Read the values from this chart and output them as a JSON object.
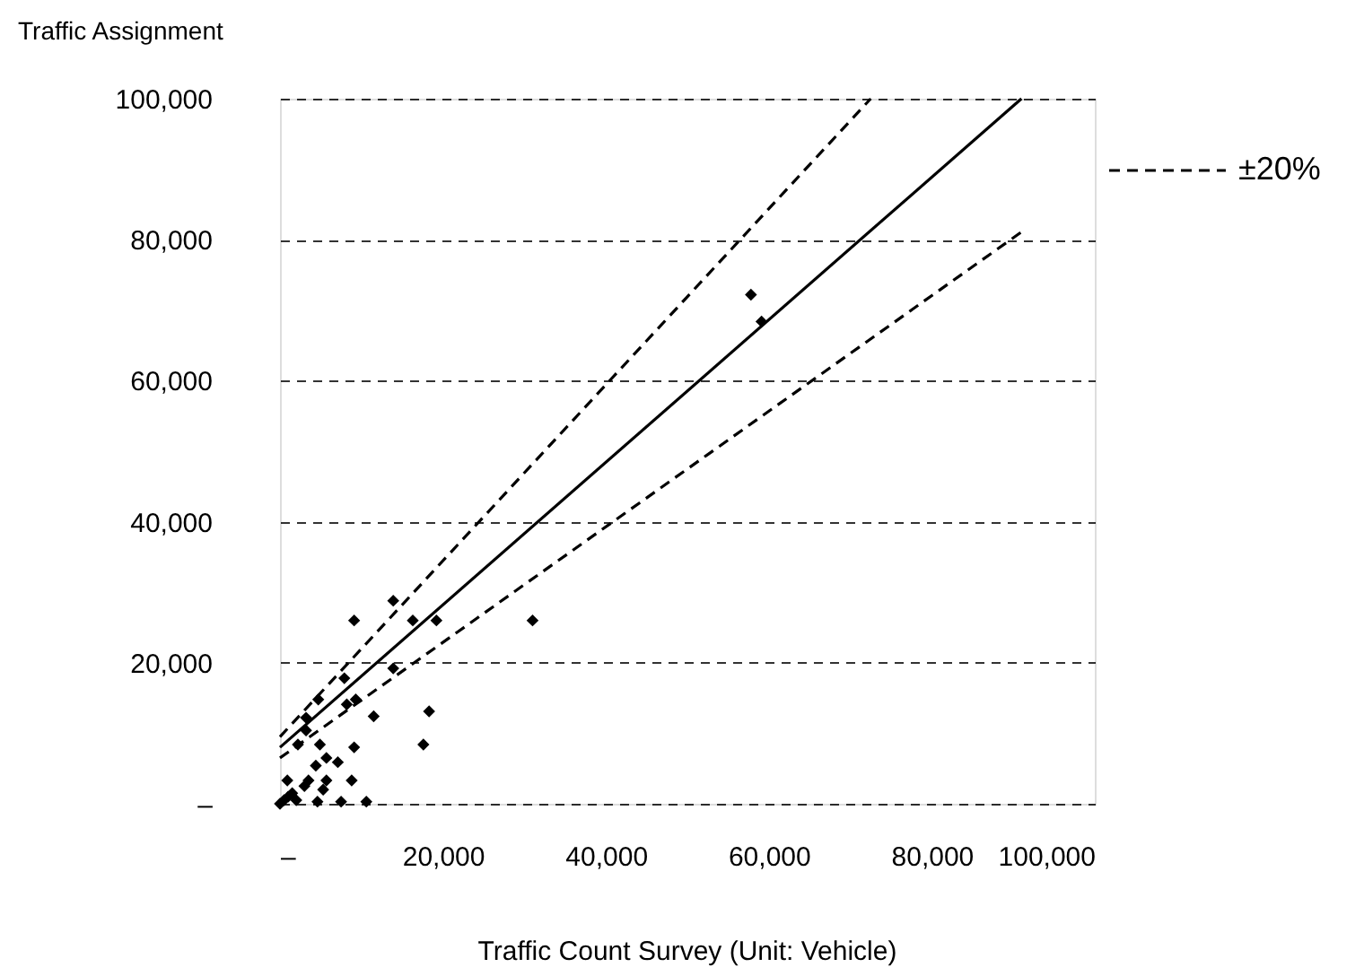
{
  "chart_data": {
    "type": "scatter",
    "ylabel": "Traffic Assignment",
    "xlabel": "Traffic Count Survey (Unit: Vehicle)",
    "xlim": [
      0,
      100000
    ],
    "ylim": [
      0,
      100000
    ],
    "xticks": [
      {
        "value": 0,
        "label": "–"
      },
      {
        "value": 20000,
        "label": "20,000"
      },
      {
        "value": 40000,
        "label": "40,000"
      },
      {
        "value": 60000,
        "label": "60,000"
      },
      {
        "value": 80000,
        "label": "80,000"
      },
      {
        "value": 100000,
        "label": "100,000"
      }
    ],
    "yticks": [
      {
        "value": 0,
        "label": "–"
      },
      {
        "value": 20000,
        "label": "20,000"
      },
      {
        "value": 40000,
        "label": "40,000"
      },
      {
        "value": 60000,
        "label": "60,000"
      },
      {
        "value": 80000,
        "label": "80,000"
      },
      {
        "value": 100000,
        "label": "100,000"
      }
    ],
    "grid": "y",
    "legend": "top right",
    "series": [
      {
        "marker": "diamond",
        "color": "#000000",
        "x": [
          13900,
          9100,
          16300,
          19200,
          31000,
          13900,
          7900,
          4700,
          8200,
          9300,
          3200,
          11500,
          18300,
          3200,
          2200,
          4900,
          9100,
          17600,
          5700,
          7100,
          4400,
          900,
          3500,
          5700,
          8800,
          5300,
          3000,
          4600,
          7500,
          10600,
          500,
          1000,
          2000,
          0,
          1500,
          57800,
          59100
        ],
        "values": [
          28800,
          26000,
          26000,
          26000,
          26000,
          19200,
          17800,
          14800,
          14100,
          14800,
          12200,
          12400,
          13100,
          10400,
          8400,
          8400,
          8000,
          8400,
          6500,
          5900,
          5400,
          3300,
          3300,
          3300,
          3300,
          2000,
          2500,
          300,
          300,
          300,
          500,
          1000,
          500,
          0,
          1500,
          72200,
          68400
        ]
      },
      {
        "type": "line",
        "color": "#000000",
        "line_style": "solid",
        "x": [
          0,
          91000
        ],
        "values": [
          8000,
          100000
        ]
      },
      {
        "type": "line",
        "name": "±20%",
        "color": "#000000",
        "line_style": "dashed",
        "x": [
          0,
          72500
        ],
        "values": [
          9500,
          100000
        ]
      },
      {
        "type": "line",
        "color": "#000000",
        "line_style": "dashed",
        "x": [
          0,
          91500
        ],
        "values": [
          6500,
          81500
        ]
      }
    ]
  }
}
